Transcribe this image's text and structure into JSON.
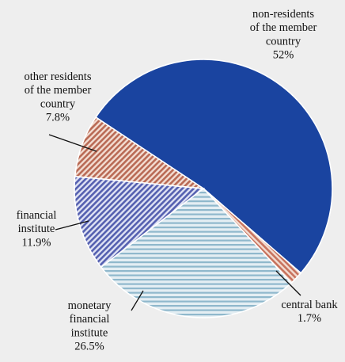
{
  "chart_data": {
    "type": "pie",
    "title": "",
    "slices": [
      {
        "label": "non-residents of the member country",
        "label_lines": [
          "non-residents",
          "of the member",
          "country"
        ],
        "value": 52,
        "value_label": "52%",
        "color": "#1a44a0",
        "pattern": "solid"
      },
      {
        "label": "central bank",
        "label_lines": [
          "central bank"
        ],
        "value": 1.7,
        "value_label": "1.7%",
        "color": "#c8735e",
        "pattern": "diagonal-hatch"
      },
      {
        "label": "monetary financial institute",
        "label_lines": [
          "monetary",
          "financial",
          "institute"
        ],
        "value": 26.5,
        "value_label": "26.5%",
        "color": "#8fb8cc",
        "pattern": "horizontal-lines"
      },
      {
        "label": "financial institute",
        "label_lines": [
          "financial",
          "institute"
        ],
        "value": 11.9,
        "value_label": "11.9%",
        "color": "#5560b0",
        "pattern": "diagonal-hatch"
      },
      {
        "label": "other residents of the member country",
        "label_lines": [
          "other  residents",
          "of the member",
          "country"
        ],
        "value": 7.8,
        "value_label": "7.8%",
        "color": "#b96a55",
        "pattern": "diagonal-hatch"
      }
    ]
  }
}
